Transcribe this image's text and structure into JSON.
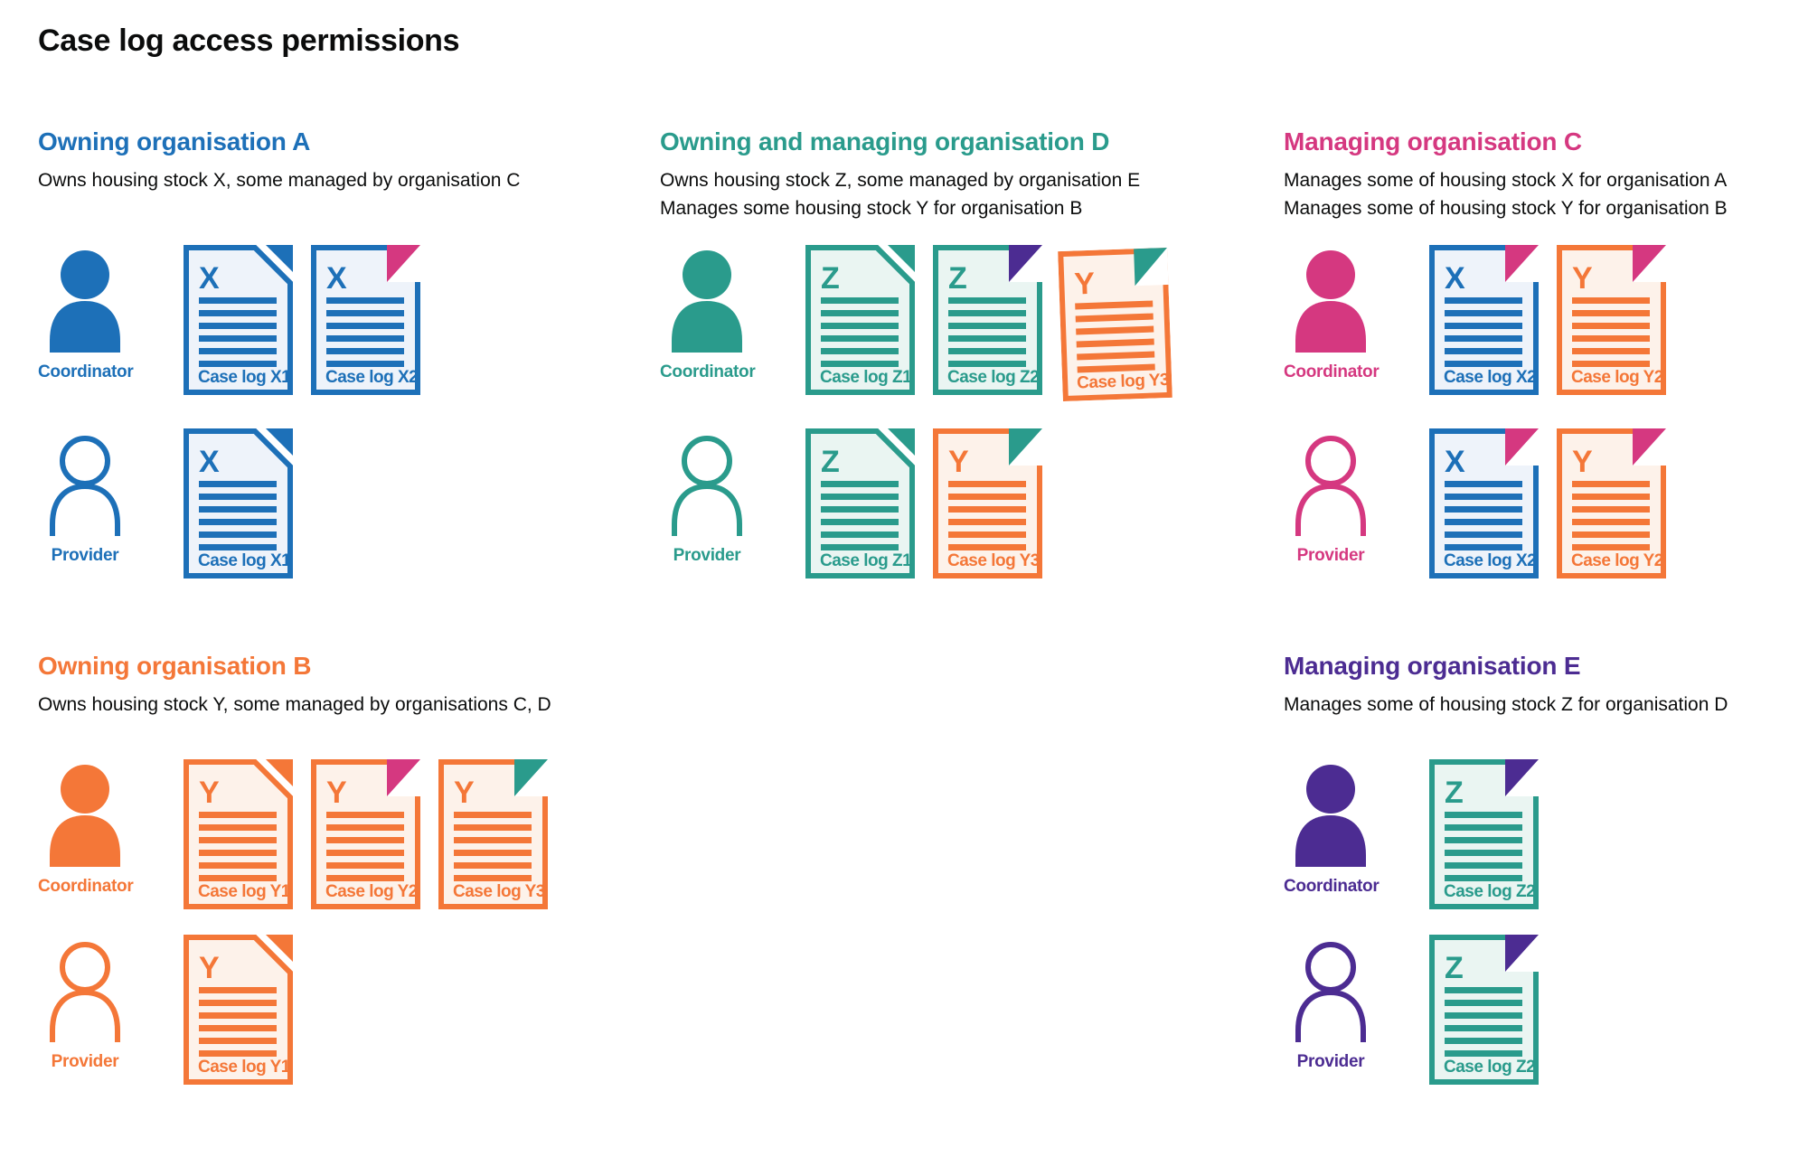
{
  "title": "Case log access permissions",
  "palette": {
    "blue": "#1d70b8",
    "teal": "#2a9b8c",
    "pink": "#d53880",
    "orange": "#f47738",
    "purple": "#4c2c92",
    "text": "#0b0c0c",
    "blue_fill": "#eef3fa",
    "teal_fill": "#eaf5f2",
    "orange_fill": "#fdf2ea"
  },
  "sections": [
    {
      "id": "org-a",
      "heading": "Owning organisation A",
      "color": "blue",
      "description": [
        "Owns housing stock X, some managed by organisation C"
      ],
      "rows": [
        {
          "role": "Coordinator",
          "docs": [
            {
              "letter": "X",
              "label": "Case log X1",
              "color": "blue",
              "fold": "blue"
            },
            {
              "letter": "X",
              "label": "Case log X2",
              "color": "blue",
              "fold": "pink"
            }
          ]
        },
        {
          "role": "Provider",
          "docs": [
            {
              "letter": "X",
              "label": "Case log X1",
              "color": "blue",
              "fold": "blue"
            }
          ]
        }
      ]
    },
    {
      "id": "org-d",
      "heading": "Owning and managing organisation D",
      "color": "teal",
      "description": [
        "Owns housing stock Z, some managed by organisation E",
        "Manages some housing stock Y for organisation B"
      ],
      "rows": [
        {
          "role": "Coordinator",
          "docs": [
            {
              "letter": "Z",
              "label": "Case log Z1",
              "color": "teal",
              "fold": "teal"
            },
            {
              "letter": "Z",
              "label": "Case log Z2",
              "color": "teal",
              "fold": "purple"
            },
            {
              "letter": "Y",
              "label": "Case log Y3",
              "color": "orange",
              "fold": "teal",
              "tilt": true
            }
          ]
        },
        {
          "role": "Provider",
          "docs": [
            {
              "letter": "Z",
              "label": "Case log Z1",
              "color": "teal",
              "fold": "teal"
            },
            {
              "letter": "Y",
              "label": "Case log Y3",
              "color": "orange",
              "fold": "teal"
            }
          ]
        }
      ]
    },
    {
      "id": "org-c",
      "heading": "Managing organisation C",
      "color": "pink",
      "description": [
        "Manages some of housing stock X for organisation A",
        "Manages some of housing stock Y for organisation B"
      ],
      "rows": [
        {
          "role": "Coordinator",
          "docs": [
            {
              "letter": "X",
              "label": "Case log X2",
              "color": "blue",
              "fold": "pink"
            },
            {
              "letter": "Y",
              "label": "Case log Y2",
              "color": "orange",
              "fold": "pink"
            }
          ]
        },
        {
          "role": "Provider",
          "docs": [
            {
              "letter": "X",
              "label": "Case log X2",
              "color": "blue",
              "fold": "pink"
            },
            {
              "letter": "Y",
              "label": "Case log Y2",
              "color": "orange",
              "fold": "pink"
            }
          ]
        }
      ]
    },
    {
      "id": "org-b",
      "heading": "Owning organisation B",
      "color": "orange",
      "description": [
        "Owns housing stock Y, some managed by organisations C, D"
      ],
      "rows": [
        {
          "role": "Coordinator",
          "docs": [
            {
              "letter": "Y",
              "label": "Case log Y1",
              "color": "orange",
              "fold": "orange"
            },
            {
              "letter": "Y",
              "label": "Case log Y2",
              "color": "orange",
              "fold": "pink"
            },
            {
              "letter": "Y",
              "label": "Case log Y3",
              "color": "orange",
              "fold": "teal"
            }
          ]
        },
        {
          "role": "Provider",
          "docs": [
            {
              "letter": "Y",
              "label": "Case log Y1",
              "color": "orange",
              "fold": "orange"
            }
          ]
        }
      ]
    },
    {
      "id": "org-e",
      "heading": "Managing organisation E",
      "color": "purple",
      "description": [
        "Manages some of housing stock Z for organisation D"
      ],
      "rows": [
        {
          "role": "Coordinator",
          "docs": [
            {
              "letter": "Z",
              "label": "Case log Z2",
              "color": "teal",
              "fold": "purple"
            }
          ]
        },
        {
          "role": "Provider",
          "docs": [
            {
              "letter": "Z",
              "label": "Case log Z2",
              "color": "teal",
              "fold": "purple"
            }
          ]
        }
      ]
    }
  ]
}
